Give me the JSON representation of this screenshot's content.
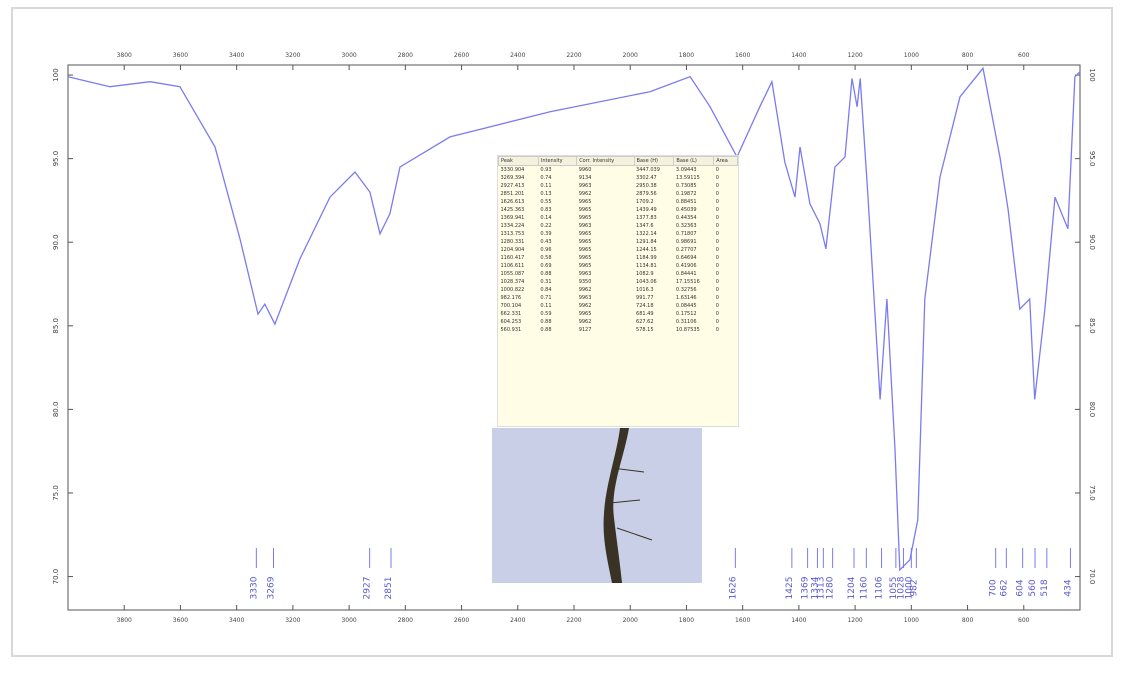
{
  "chart_data": {
    "type": "line",
    "color": "#7b7bf0",
    "x": [
      4000,
      3851,
      3708,
      3602,
      3477,
      3388,
      3324,
      3300,
      3264,
      3175,
      3068,
      2979,
      2926,
      2890,
      2855,
      2819,
      2641,
      2285,
      1930,
      1787,
      1716,
      1620,
      1539,
      1496,
      1450,
      1414,
      1396,
      1361,
      1325,
      1304,
      1272,
      1236,
      1211,
      1193,
      1182,
      1154,
      1111,
      1087,
      1058,
      1041,
      1005,
      977,
      952,
      898,
      827,
      745,
      685,
      656,
      614,
      579,
      561,
      525,
      489,
      443,
      418,
      400
    ],
    "values": [
      99.9,
      99.3,
      99.6,
      99.3,
      95.7,
      90.2,
      85.7,
      86.3,
      85.1,
      89.0,
      92.7,
      94.2,
      93.0,
      90.5,
      91.7,
      94.5,
      96.3,
      97.8,
      99.0,
      99.9,
      98.1,
      95.1,
      98.1,
      99.6,
      94.8,
      92.7,
      95.7,
      92.3,
      91.1,
      89.6,
      94.5,
      95.1,
      99.8,
      98.1,
      99.8,
      92.7,
      80.6,
      86.6,
      77.6,
      70.4,
      71.0,
      73.4,
      86.6,
      93.9,
      98.7,
      100.4,
      95.1,
      92.0,
      86.0,
      86.6,
      80.6,
      86.0,
      92.7,
      90.8,
      99.9,
      100.2
    ],
    "xlim": [
      4000,
      400
    ],
    "ylim": [
      68,
      100.6
    ],
    "xticks": [
      3800,
      3600,
      3400,
      3200,
      3000,
      2800,
      2600,
      2400,
      2200,
      2000,
      1800,
      1600,
      1400,
      1200,
      1000,
      800,
      600
    ],
    "yticks": [
      {
        "value": 70,
        "label": "70.0"
      },
      {
        "value": 75,
        "label": "75.0"
      },
      {
        "value": 80,
        "label": "80.0"
      },
      {
        "value": 85,
        "label": "85.0"
      },
      {
        "value": 90,
        "label": "90.0"
      },
      {
        "value": 95,
        "label": "95.0"
      },
      100
    ],
    "peak_labels": [
      3330,
      3269,
      2927,
      2851,
      1626,
      1425,
      1369,
      1334,
      1313,
      1280,
      1204,
      1160,
      1106,
      1055,
      1028,
      1000,
      982,
      700,
      662,
      604,
      560,
      518,
      434
    ]
  },
  "table": {
    "columns": [
      "Peak",
      "Intensity",
      "Corr. Intensity",
      "Base (H)",
      "Base (L)",
      "Area"
    ],
    "rows": [
      [
        "3330.904",
        "0.93",
        "9960",
        "3447.039",
        "3.09443",
        "0"
      ],
      [
        "3269.394",
        "0.74",
        "9134",
        "3302.47",
        "13.59115",
        "0"
      ],
      [
        "2927.413",
        "0.11",
        "9963",
        "2950.38",
        "0.73085",
        "0"
      ],
      [
        "2851.201",
        "0.13",
        "9962",
        "2879.56",
        "0.19872",
        "0"
      ],
      [
        "1626.613",
        "0.55",
        "9965",
        "1709.2",
        "0.88451",
        "0"
      ],
      [
        "1425.363",
        "0.83",
        "9965",
        "1439.49",
        "0.45039",
        "0"
      ],
      [
        "1369.941",
        "0.14",
        "9965",
        "1377.83",
        "0.44354",
        "0"
      ],
      [
        "1334.224",
        "0.22",
        "9963",
        "1347.6",
        "0.32363",
        "0"
      ],
      [
        "1313.753",
        "0.39",
        "9965",
        "1322.14",
        "0.71807",
        "0"
      ],
      [
        "1280.331",
        "0.43",
        "9965",
        "1291.84",
        "0.98691",
        "0"
      ],
      [
        "1204.904",
        "0.96",
        "9965",
        "1244.15",
        "0.27707",
        "0"
      ],
      [
        "1160.417",
        "0.58",
        "9965",
        "1184.99",
        "0.64694",
        "0"
      ],
      [
        "1106.611",
        "0.69",
        "9965",
        "1134.81",
        "0.41906",
        "0"
      ],
      [
        "1055.087",
        "0.88",
        "9963",
        "1082.9",
        "0.84441",
        "0"
      ],
      [
        "1028.374",
        "0.31",
        "9350",
        "1043.06",
        "17.15516",
        "0"
      ],
      [
        "1000.822",
        "0.84",
        "9962",
        "1016.3",
        "0.32756",
        "0"
      ],
      [
        "982.176",
        "0.71",
        "9963",
        "991.77",
        "1.63146",
        "0"
      ],
      [
        "700.104",
        "0.11",
        "9962",
        "724.18",
        "0.08445",
        "0"
      ],
      [
        "662.331",
        "0.59",
        "9965",
        "681.49",
        "0.17512",
        "0"
      ],
      [
        "604.253",
        "0.88",
        "9962",
        "627.62",
        "0.31106",
        "0"
      ],
      [
        "560.931",
        "0.88",
        "9127",
        "578.15",
        "10.87535",
        "0"
      ]
    ]
  }
}
